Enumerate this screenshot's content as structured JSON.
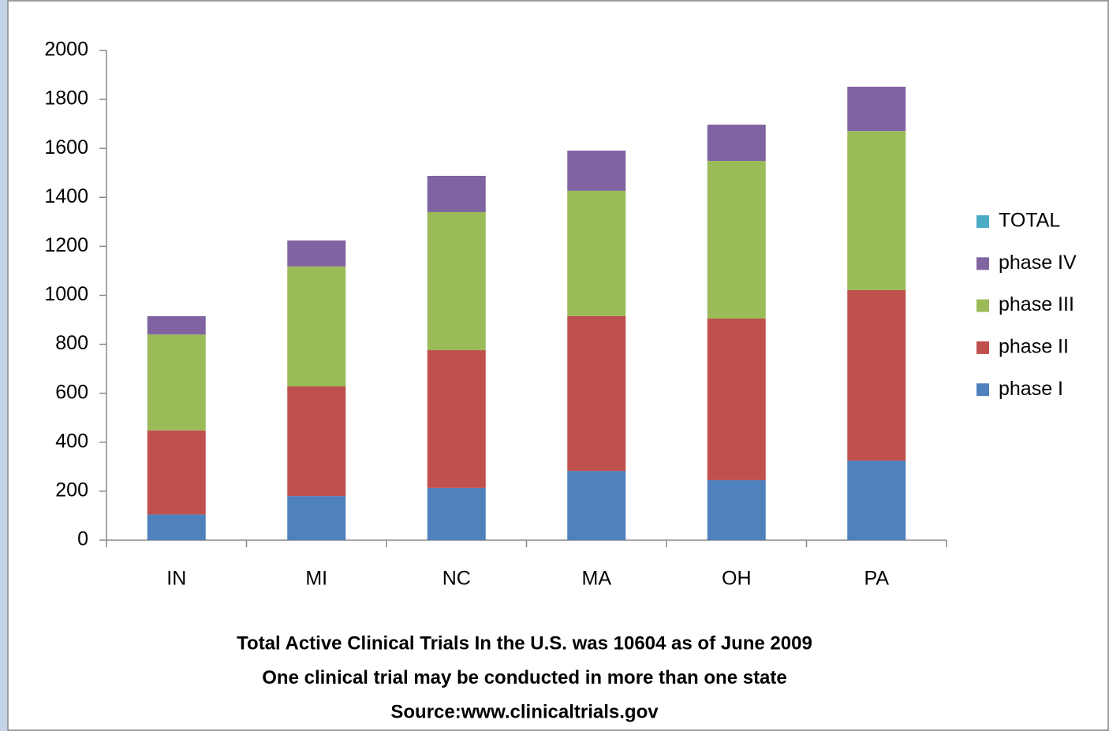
{
  "chart_data": {
    "type": "stacked_bar",
    "categories": [
      "IN",
      "MI",
      "NC",
      "MA",
      "OH",
      "PA"
    ],
    "series": [
      {
        "name": "phase I",
        "color": "#4f81bd",
        "values": [
          105,
          180,
          213,
          283,
          245,
          325
        ]
      },
      {
        "name": "phase II",
        "color": "#c0504d",
        "values": [
          343,
          448,
          563,
          632,
          660,
          696
        ]
      },
      {
        "name": "phase III",
        "color": "#9bbb59",
        "values": [
          392,
          490,
          564,
          512,
          644,
          650
        ]
      },
      {
        "name": "phase IV",
        "color": "#8064a2",
        "values": [
          75,
          106,
          148,
          164,
          148,
          181
        ]
      },
      {
        "name": "TOTAL",
        "color": "#4bacc6",
        "values": [
          null,
          null,
          null,
          null,
          null,
          null
        ]
      }
    ],
    "ylim": [
      0,
      2000
    ],
    "yticks": [
      0,
      200,
      400,
      600,
      800,
      1000,
      1200,
      1400,
      1600,
      1800,
      2000
    ],
    "grid": false,
    "legend": "right",
    "caption": [
      "Total Active Clinical Trials In the U.S. was 10604 as of June 2009",
      "One clinical trial may be conducted in more than one state",
      "Source:www.clinicaltrials.gov"
    ]
  }
}
